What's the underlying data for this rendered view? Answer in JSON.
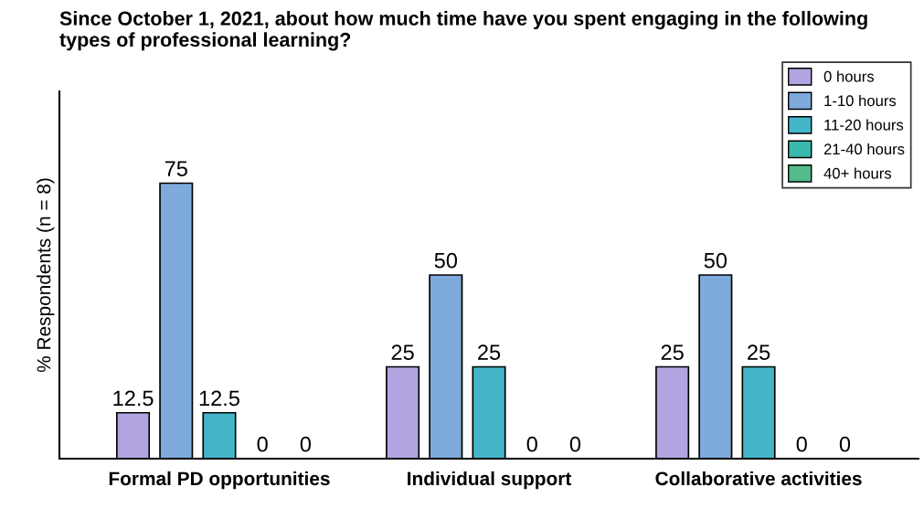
{
  "chart_data": {
    "type": "bar",
    "title": "Since October 1, 2021, about how much time have you spent engaging in the following types of professional learning?",
    "ylabel": "% Respondents (n = 8)",
    "categories": [
      "Formal PD opportunities",
      "Individual support",
      "Collaborative activities"
    ],
    "series": [
      {
        "name": "0 hours",
        "color": "#b1a4e0",
        "values": [
          12.5,
          25,
          25
        ]
      },
      {
        "name": "1-10 hours",
        "color": "#7eaadc",
        "values": [
          75,
          50,
          50
        ]
      },
      {
        "name": "11-20 hours",
        "color": "#45b6c9",
        "values": [
          12.5,
          25,
          25
        ]
      },
      {
        "name": "21-40 hours",
        "color": "#38b9ab",
        "values": [
          0,
          0,
          0
        ]
      },
      {
        "name": "40+ hours",
        "color": "#54bb8a",
        "values": [
          0,
          0,
          0
        ]
      }
    ],
    "ylim": [
      0,
      100
    ],
    "tick_labels": "x",
    "data_labels": true,
    "legend": "top right",
    "grid": false
  }
}
